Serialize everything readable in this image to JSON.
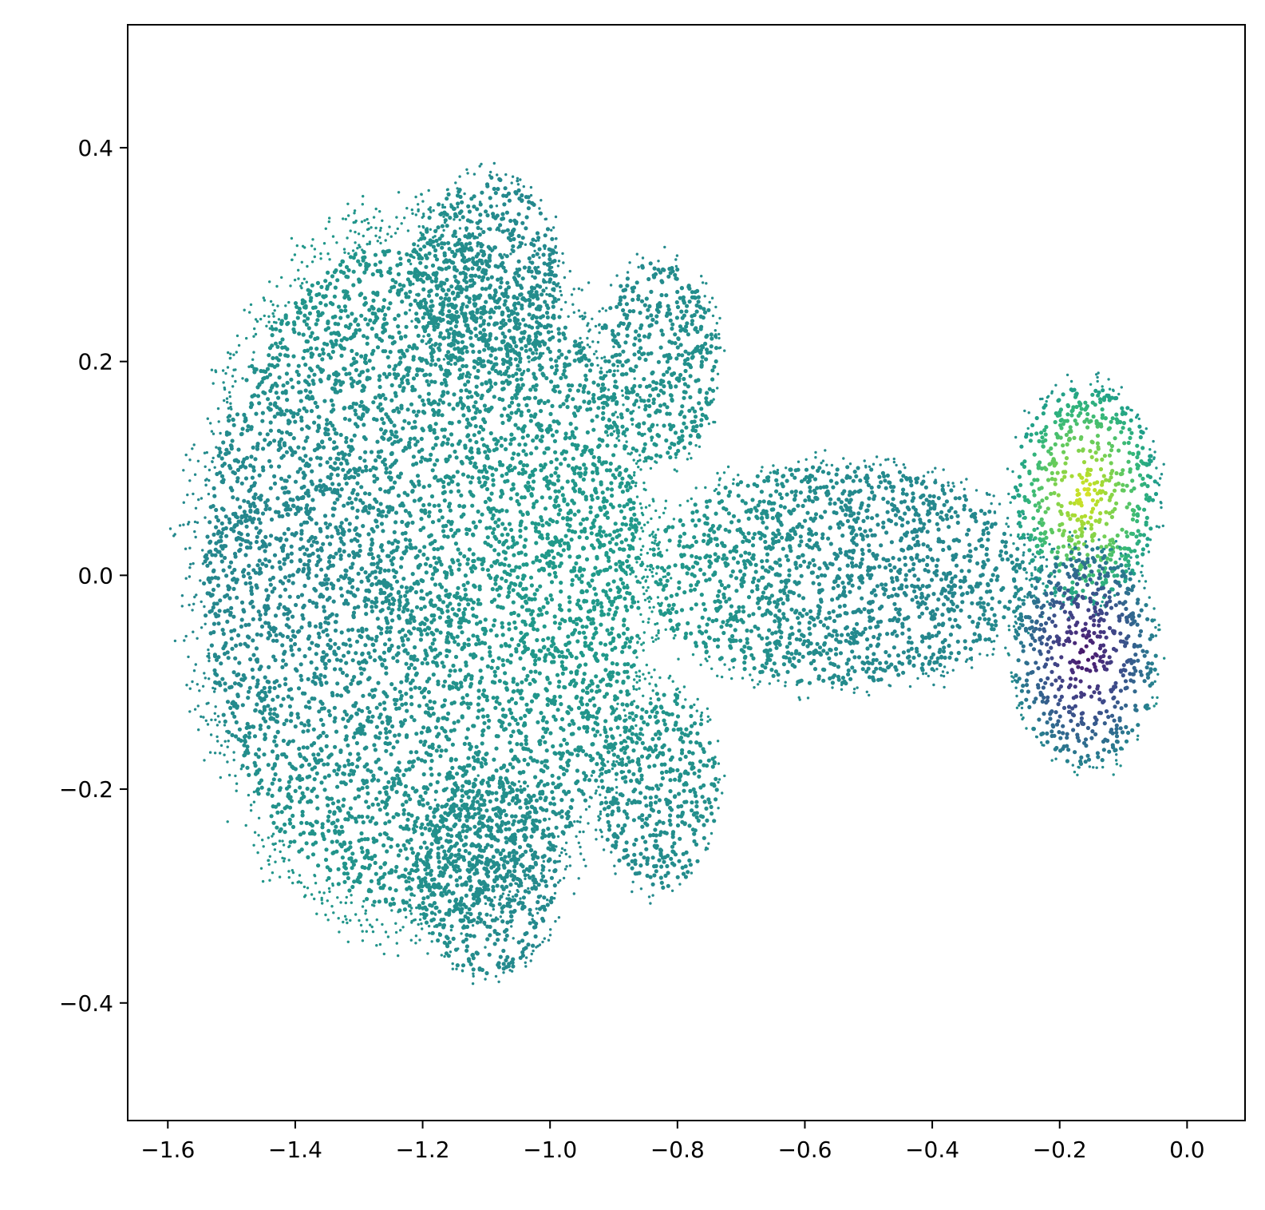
{
  "chart_data": {
    "type": "scatter",
    "title": "",
    "xlabel": "",
    "ylabel": "",
    "xlim": [
      -1.663,
      0.091
    ],
    "ylim": [
      -0.51,
      0.515
    ],
    "x_ticks": [
      -1.6,
      -1.4,
      -1.2,
      -1.0,
      -0.8,
      -0.6,
      -0.4,
      -0.2,
      0.0
    ],
    "y_ticks": [
      -0.4,
      -0.2,
      0.0,
      0.2,
      0.4
    ],
    "x_tick_labels": [
      "−1.6",
      "−1.4",
      "−1.2",
      "−1.0",
      "−0.8",
      "−0.6",
      "−0.4",
      "−0.2",
      "0.0"
    ],
    "y_tick_labels": [
      "−0.4",
      "−0.2",
      "0.0",
      "0.2",
      "0.4"
    ],
    "grid": false,
    "legend": "none",
    "colormap": "viridis",
    "base_color": "#21918c",
    "regions": [
      {
        "center": [
          -1.2,
          0.0
        ],
        "radius": [
          0.37,
          0.34
        ],
        "value": 0.0
      },
      {
        "center": [
          -1.1,
          0.28
        ],
        "radius": [
          0.12,
          0.1
        ],
        "value": 0.0
      },
      {
        "center": [
          -1.1,
          -0.28
        ],
        "radius": [
          0.12,
          0.1
        ],
        "value": 0.0
      },
      {
        "center": [
          -0.83,
          0.2
        ],
        "radius": [
          0.1,
          0.1
        ],
        "value": 0.0
      },
      {
        "center": [
          -0.83,
          -0.2
        ],
        "radius": [
          0.1,
          0.1
        ],
        "value": 0.0
      },
      {
        "center": [
          -0.55,
          0.0
        ],
        "radius": [
          0.32,
          0.11
        ],
        "value": 0.0
      },
      {
        "center": [
          -0.16,
          0.075
        ],
        "radius": [
          0.12,
          0.11
        ],
        "value": 0.9
      },
      {
        "center": [
          -0.16,
          -0.075
        ],
        "radius": [
          0.12,
          0.11
        ],
        "value": -0.9
      }
    ],
    "colors": {
      "positive_peak": "#fde725",
      "negative_peak": "#440154"
    }
  }
}
